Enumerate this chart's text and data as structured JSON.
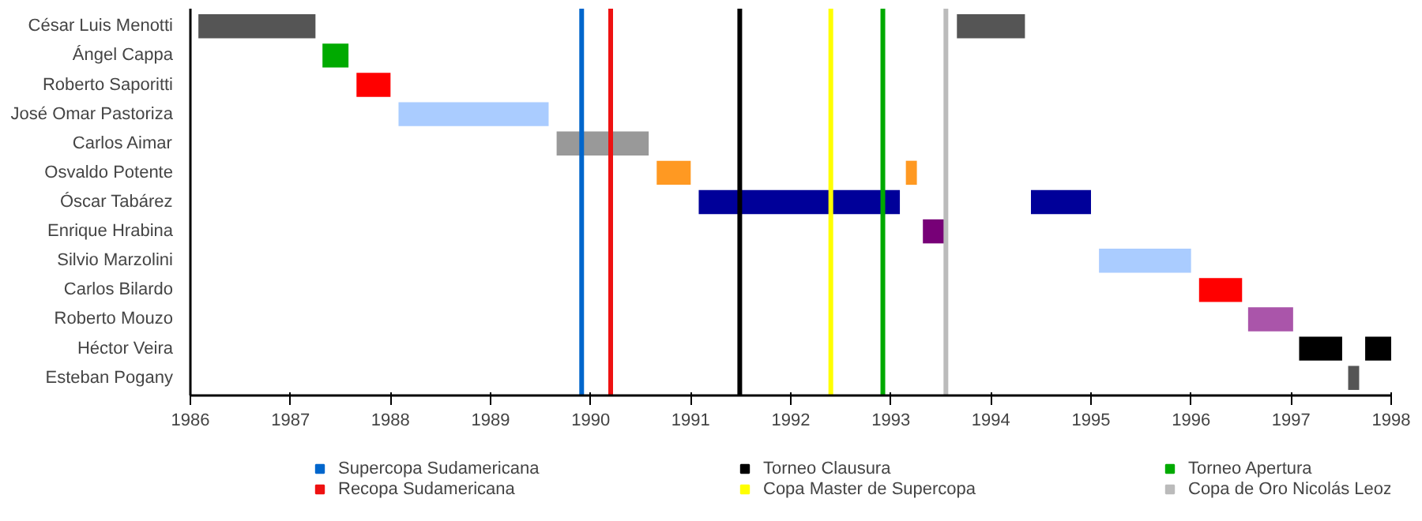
{
  "chart_data": {
    "type": "bar",
    "orientation": "horizontal",
    "categories": [
      "César Luis Menotti",
      "Ángel Cappa",
      "Roberto Saporitti",
      "José Omar Pastoriza",
      "Carlos Aimar",
      "Osvaldo Potente",
      "Óscar Tabárez",
      "Enrique Hrabina",
      "Silvio Marzolini",
      "Carlos Bilardo",
      "Roberto Mouzo",
      "Héctor Veira",
      "Esteban Pogany"
    ],
    "series": [
      {
        "base": [
          1986.08,
          1987.32,
          1987.66,
          1988.08,
          1989.66,
          1990.66,
          1991.08,
          1993.32,
          1995.08,
          1996.08,
          1996.57,
          1997.08,
          1997.57
        ],
        "values": [
          1.17,
          0.26,
          0.34,
          1.5,
          0.92,
          0.34,
          2.01,
          0.22,
          0.92,
          0.43,
          0.45,
          0.43,
          0.11
        ],
        "colors": [
          "#555555",
          "#00aa00",
          "#ff0000",
          "#aaccff",
          "#999999",
          "#ff9922",
          "#000099",
          "#770077",
          "#aaccff",
          "#ff0000",
          "#aa55aa",
          "#000000",
          "#555555"
        ]
      },
      {
        "base": [
          1993.66,
          null,
          null,
          null,
          null,
          1993.15,
          1994.4,
          null,
          null,
          null,
          null,
          1997.74,
          null
        ],
        "values": [
          0.68,
          null,
          null,
          null,
          null,
          0.11,
          0.6,
          null,
          null,
          null,
          null,
          0.26,
          null
        ],
        "colors": [
          "#555555",
          null,
          null,
          null,
          null,
          "#ff9922",
          "#000099",
          null,
          null,
          null,
          null,
          "#000000",
          null
        ]
      }
    ],
    "xlim": [
      1986,
      1998
    ],
    "xticks": [
      1986,
      1987,
      1988,
      1989,
      1990,
      1991,
      1992,
      1993,
      1994,
      1995,
      1996,
      1997,
      1998
    ],
    "ref_lines": [
      {
        "axis": "x",
        "value": 1989.91,
        "label": "Supercopa Sudamericana",
        "color": "#0066cc"
      },
      {
        "axis": "x",
        "value": 1990.2,
        "label": "Recopa Sudamericana",
        "color": "#ee1111"
      },
      {
        "axis": "x",
        "value": 1991.49,
        "label": "Torneo Clausura",
        "color": "#000000"
      },
      {
        "axis": "x",
        "value": 1992.4,
        "label": "Copa Master de Supercopa",
        "color": "#ffff00"
      },
      {
        "axis": "x",
        "value": 1992.92,
        "label": "Torneo Apertura",
        "color": "#00aa00"
      },
      {
        "axis": "x",
        "value": 1993.55,
        "label": "Copa de Oro Nicolás Leoz",
        "color": "#bbbbbb"
      }
    ],
    "legend": "bottom",
    "grid": false
  }
}
